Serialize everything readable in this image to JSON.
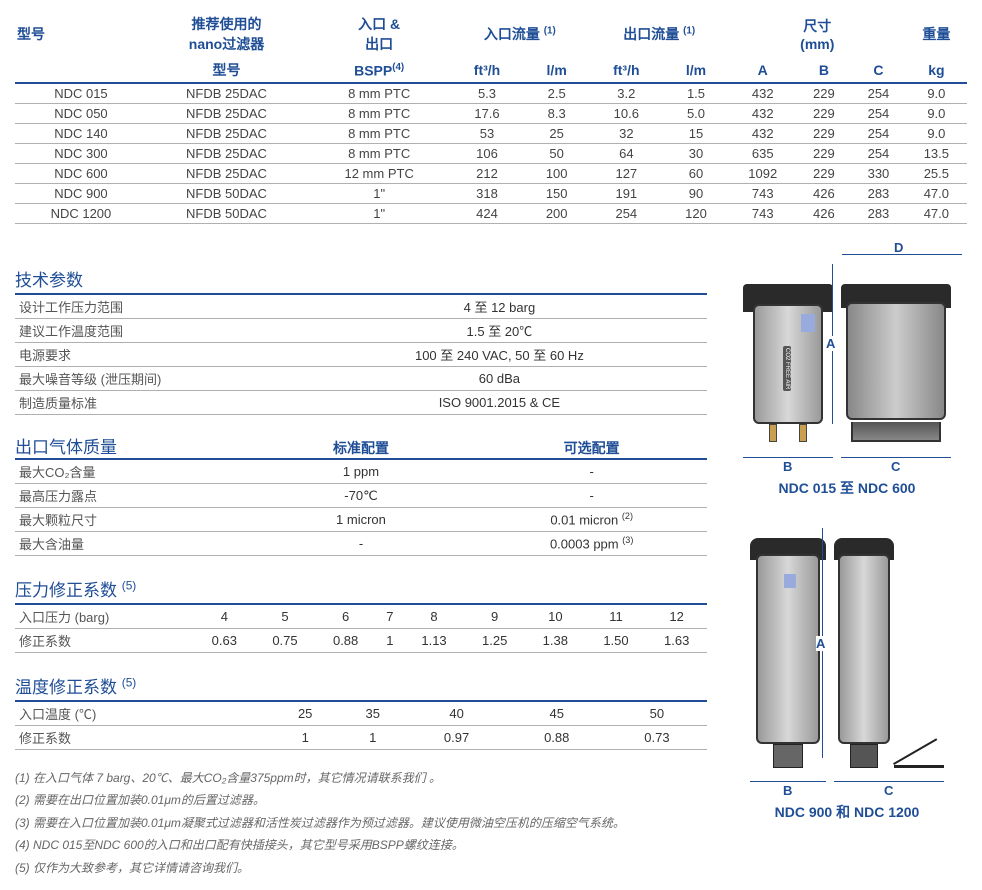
{
  "colors": {
    "accent": "#1f4e96",
    "border": "#b0b0b0",
    "text": "#333333",
    "muted": "#666666"
  },
  "mainTable": {
    "headers1": [
      "型号",
      "推荐使用的\nnano过滤器",
      "入口 &\n出口",
      "入口流量 ",
      "出口流量 ",
      "尺寸\n(mm)",
      "重量"
    ],
    "headers1_sup": [
      "",
      "",
      "",
      "(1)",
      "(1)",
      "",
      ""
    ],
    "headers2": [
      "",
      "型号",
      "BSPP",
      "ft³/h",
      "l/m",
      "ft³/h",
      "l/m",
      "A",
      "B",
      "C",
      "kg"
    ],
    "headers2_sup": [
      "",
      "",
      "(4)",
      "",
      "",
      "",
      "",
      "",
      "",
      "",
      ""
    ],
    "colspans1": [
      1,
      1,
      1,
      2,
      2,
      3,
      1
    ],
    "rows": [
      [
        "NDC 015",
        "NFDB 25DAC",
        "8 mm PTC",
        "5.3",
        "2.5",
        "3.2",
        "1.5",
        "432",
        "229",
        "254",
        "9.0"
      ],
      [
        "NDC 050",
        "NFDB 25DAC",
        "8 mm PTC",
        "17.6",
        "8.3",
        "10.6",
        "5.0",
        "432",
        "229",
        "254",
        "9.0"
      ],
      [
        "NDC 140",
        "NFDB 25DAC",
        "8 mm PTC",
        "53",
        "25",
        "32",
        "15",
        "432",
        "229",
        "254",
        "9.0"
      ],
      [
        "NDC 300",
        "NFDB 25DAC",
        "8 mm PTC",
        "106",
        "50",
        "64",
        "30",
        "635",
        "229",
        "254",
        "13.5"
      ],
      [
        "NDC 600",
        "NFDB 25DAC",
        "12 mm PTC",
        "212",
        "100",
        "127",
        "60",
        "1092",
        "229",
        "330",
        "25.5"
      ],
      [
        "NDC 900",
        "NFDB 50DAC",
        "1\"",
        "318",
        "150",
        "191",
        "90",
        "743",
        "426",
        "283",
        "47.0"
      ],
      [
        "NDC 1200",
        "NFDB 50DAC",
        "1\"",
        "424",
        "200",
        "254",
        "120",
        "743",
        "426",
        "283",
        "47.0"
      ]
    ]
  },
  "techParams": {
    "title": "技术参数",
    "rows": [
      [
        "设计工作压力范围",
        "4 至 12 barg"
      ],
      [
        "建议工作温度范围",
        "1.5 至 20℃"
      ],
      [
        "电源要求",
        "100 至 240 VAC, 50 至 60 Hz"
      ],
      [
        "最大噪音等级 (泄压期间)",
        "60 dBa"
      ],
      [
        "制造质量标准",
        "ISO 9001.2015 & CE"
      ]
    ]
  },
  "outletQuality": {
    "title": "出口气体质量",
    "cols": [
      "标准配置",
      "可选配置"
    ],
    "rows": [
      {
        "label": "最大CO₂含量",
        "std": "1 ppm",
        "opt": "-",
        "opt_sup": ""
      },
      {
        "label": "最高压力露点",
        "std": "-70℃",
        "opt": "-",
        "opt_sup": ""
      },
      {
        "label": "最大颗粒尺寸",
        "std": "1 micron",
        "opt": "0.01 micron ",
        "opt_sup": "(2)"
      },
      {
        "label": "最大含油量",
        "std": "-",
        "opt": "0.0003 ppm ",
        "opt_sup": "(3)"
      }
    ]
  },
  "pressureCF": {
    "title": "压力修正系数 ",
    "title_sup": "(5)",
    "labelRow": "入口压力 (barg)",
    "labelCF": "修正系数",
    "pressures": [
      "4",
      "5",
      "6",
      "7",
      "8",
      "9",
      "10",
      "11",
      "12"
    ],
    "factors": [
      "0.63",
      "0.75",
      "0.88",
      "1",
      "1.13",
      "1.25",
      "1.38",
      "1.50",
      "1.63"
    ]
  },
  "tempCF": {
    "title": "温度修正系数 ",
    "title_sup": "(5)",
    "labelRow": "入口温度 (℃)",
    "labelCF": "修正系数",
    "temps": [
      "25",
      "35",
      "40",
      "45",
      "50"
    ],
    "factors": [
      "1",
      "1",
      "0.97",
      "0.88",
      "0.73"
    ]
  },
  "footnotes": [
    "(1)  在入口气体 7 barg、20℃、最大CO₂含量375ppm时，其它情况请联系我们 。",
    "(2) 需要在出口位置加装0.01μm的后置过滤器。",
    "(3) 需要在入口位置加装0.01μm凝聚式过滤器和活性炭过滤器作为预过滤器。建议使用微油空压机的压缩空气系统。",
    "(4) NDC 015至NDC 600的入口和出口配有快插接头，其它型号采用BSPP螺纹连接。",
    "(5)  仅作为大致参考，其它详情请咨询我们。"
  ],
  "diagrams": {
    "top_caption": "NDC 015 至 NDC 600",
    "bottom_caption": "NDC 900 和 NDC 1200",
    "labels": {
      "A": "A",
      "B": "B",
      "C": "C",
      "D": "D"
    },
    "co2_text": "CO2 FREE AIR"
  }
}
